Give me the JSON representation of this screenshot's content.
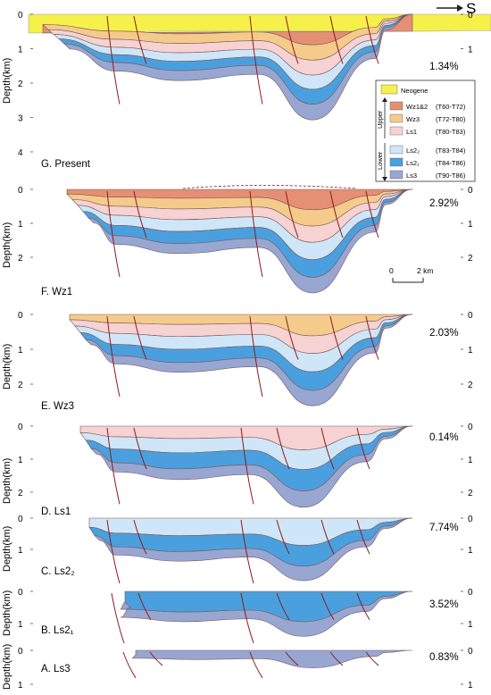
{
  "direction_label": "S",
  "depth_axis_label": "Depth(km)",
  "colors": {
    "neogene": "#f6f04a",
    "wz12": "#e58f74",
    "wz3": "#f5cb8c",
    "ls1": "#f6d2d2",
    "ls22": "#cfe6f8",
    "ls21": "#4aa0de",
    "ls3": "#98a6d2",
    "fault": "#8b1c1c"
  },
  "legend": {
    "items": [
      {
        "name": "Neogene",
        "interval": "",
        "color_key": "neogene"
      },
      {
        "name": "Wz1&2",
        "interval": "(T60-T72)",
        "color_key": "wz12"
      },
      {
        "name": "Wz3",
        "interval": "(T72-T80)",
        "color_key": "wz3"
      },
      {
        "name": "Ls1",
        "interval": "(T80-T83)",
        "color_key": "ls1"
      },
      {
        "name": "Ls2₂",
        "interval": "(T83-T84)",
        "color_key": "ls22"
      },
      {
        "name": "Ls2₁",
        "interval": "(T84-T86)",
        "color_key": "ls21"
      },
      {
        "name": "Ls3",
        "interval": "(T90-T86)",
        "color_key": "ls3"
      }
    ],
    "upper_label": "Upper",
    "lower_label": "Lower"
  },
  "scale_bar": {
    "zero": "0",
    "length": "2 km"
  },
  "panels": [
    {
      "label": "G. Present",
      "extension": "1.34%",
      "ticks": [
        "0",
        "1",
        "2",
        "3",
        "4"
      ],
      "layers": [
        "neogene",
        "wz12",
        "wz3",
        "ls1",
        "ls22",
        "ls21",
        "ls3"
      ]
    },
    {
      "label": "F. Wz1",
      "extension": "2.92%",
      "ticks": [
        "0",
        "1",
        "2"
      ],
      "layers": [
        "wz12",
        "wz3",
        "ls1",
        "ls22",
        "ls21",
        "ls3"
      ]
    },
    {
      "label": "E. Wz3",
      "extension": "2.03%",
      "ticks": [
        "0",
        "1",
        "2"
      ],
      "layers": [
        "wz3",
        "ls1",
        "ls22",
        "ls21",
        "ls3"
      ]
    },
    {
      "label": "D. Ls1",
      "extension": "0.14%",
      "ticks": [
        "0",
        "1",
        "2"
      ],
      "layers": [
        "ls1",
        "ls22",
        "ls21",
        "ls3"
      ]
    },
    {
      "label": "C. Ls2₂",
      "extension": "7.74%",
      "ticks": [
        "0",
        "1"
      ],
      "layers": [
        "ls22",
        "ls21",
        "ls3"
      ]
    },
    {
      "label": "B. Ls2₁",
      "extension": "3.52%",
      "ticks": [
        "0",
        "1"
      ],
      "layers": [
        "ls21",
        "ls3"
      ]
    },
    {
      "label": "A. Ls3",
      "extension": "0.83%",
      "ticks": [
        "0",
        "1"
      ],
      "layers": [
        "ls3"
      ]
    }
  ]
}
